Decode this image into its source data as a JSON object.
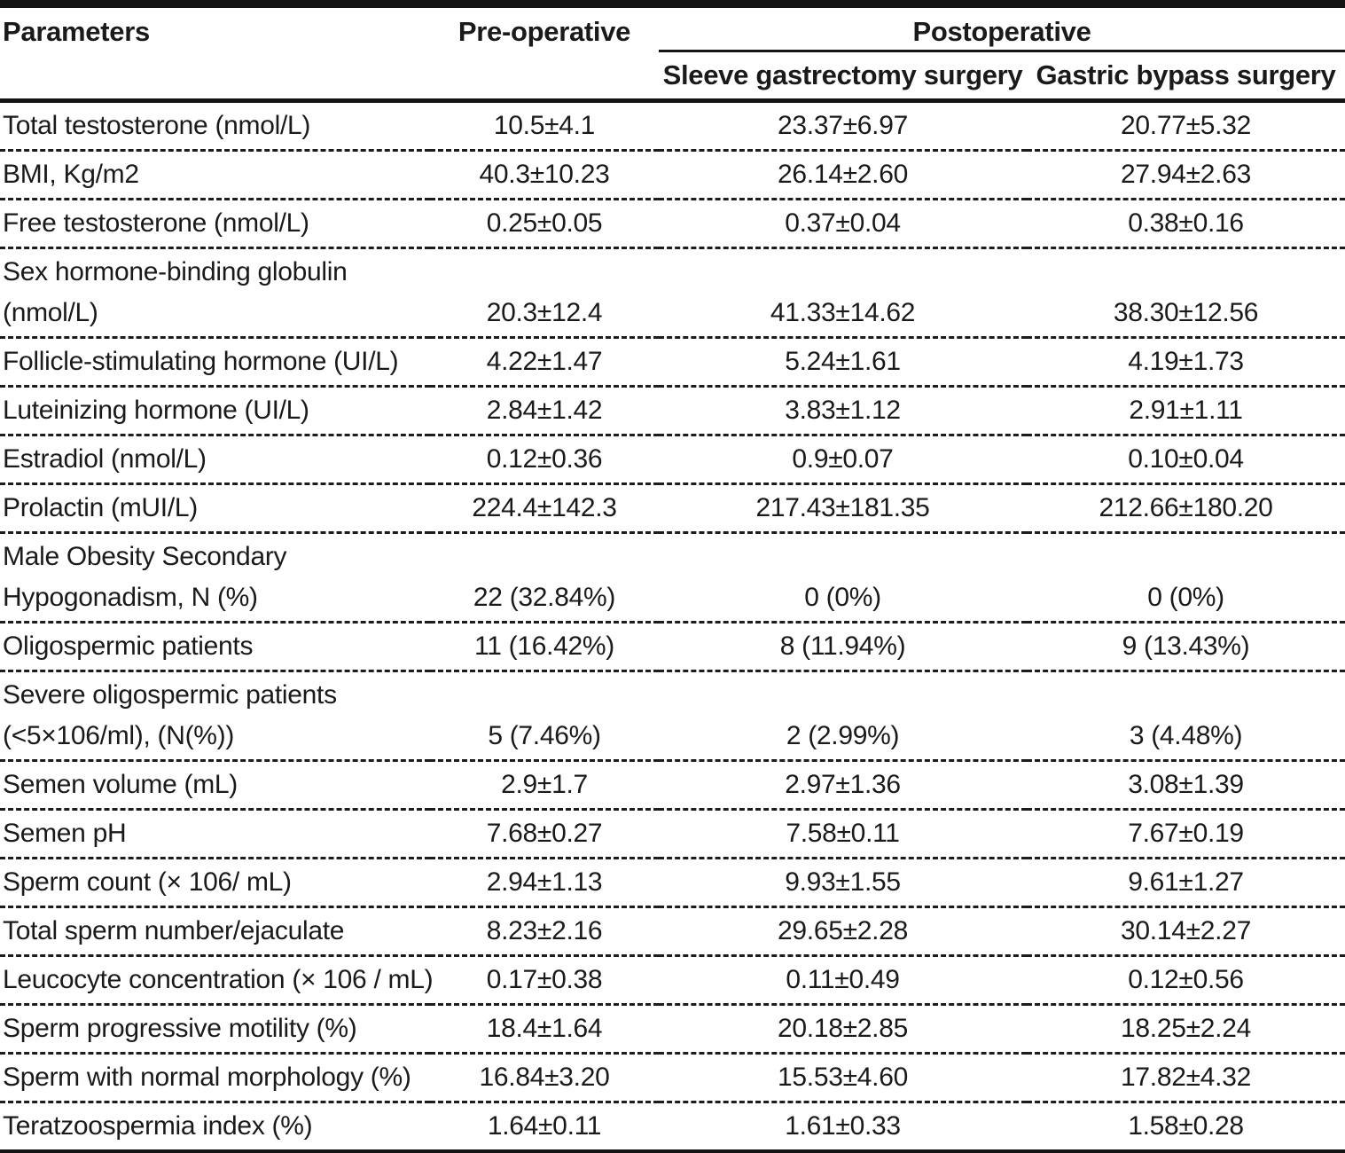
{
  "table": {
    "header": {
      "parameters": "Parameters",
      "pre_operative": "Pre-operative",
      "postoperative_group": "Postoperative",
      "sleeve_column": "Sleeve gastrectomy surgery",
      "bypass_column": "Gastric bypass surgery"
    },
    "rows": [
      {
        "parameter": "Total testosterone (nmol/L)",
        "pre_operative": "10.5±4.1",
        "sleeve": "23.37±6.97",
        "bypass": "20.77±5.32"
      },
      {
        "parameter": "BMI, Kg/m2",
        "pre_operative": "40.3±10.23",
        "sleeve": "26.14±2.60",
        "bypass": "27.94±2.63"
      },
      {
        "parameter": "Free testosterone (nmol/L)",
        "pre_operative": "0.25±0.05",
        "sleeve": "0.37±0.04",
        "bypass": "0.38±0.16"
      },
      {
        "parameter": "Sex hormone-binding globulin\n(nmol/L)",
        "pre_operative": "20.3±12.4",
        "sleeve": "41.33±14.62",
        "bypass": "38.30±12.56"
      },
      {
        "parameter": "Follicle-stimulating hormone (UI/L)",
        "pre_operative": "4.22±1.47",
        "sleeve": "5.24±1.61",
        "bypass": "4.19±1.73"
      },
      {
        "parameter": "Luteinizing hormone (UI/L)",
        "pre_operative": "2.84±1.42",
        "sleeve": "3.83±1.12",
        "bypass": "2.91±1.11"
      },
      {
        "parameter": "Estradiol (nmol/L)",
        "pre_operative": "0.12±0.36",
        "sleeve": "0.9±0.07",
        "bypass": "0.10±0.04"
      },
      {
        "parameter": "Prolactin (mUI/L)",
        "pre_operative": "224.4±142.3",
        "sleeve": "217.43±181.35",
        "bypass": "212.66±180.20"
      },
      {
        "parameter": "Male Obesity Secondary\nHypogonadism, N (%)",
        "pre_operative": "22 (32.84%)",
        "sleeve": "0 (0%)",
        "bypass": "0 (0%)"
      },
      {
        "parameter": "Oligospermic patients",
        "pre_operative": "11 (16.42%)",
        "sleeve": "8 (11.94%)",
        "bypass": "9 (13.43%)"
      },
      {
        "parameter": "Severe oligospermic patients\n(<5×106/ml), (N(%))",
        "pre_operative": "5 (7.46%)",
        "sleeve": "2 (2.99%)",
        "bypass": "3 (4.48%)"
      },
      {
        "parameter": "Semen volume (mL)",
        "pre_operative": "2.9±1.7",
        "sleeve": "2.97±1.36",
        "bypass": "3.08±1.39"
      },
      {
        "parameter": "Semen pH",
        "pre_operative": "7.68±0.27",
        "sleeve": "7.58±0.11",
        "bypass": "7.67±0.19"
      },
      {
        "parameter": "Sperm count (× 106/ mL)",
        "pre_operative": "2.94±1.13",
        "sleeve": "9.93±1.55",
        "bypass": "9.61±1.27"
      },
      {
        "parameter": "Total sperm number/ejaculate",
        "pre_operative": "8.23±2.16",
        "sleeve": "29.65±2.28",
        "bypass": "30.14±2.27"
      },
      {
        "parameter": "Leucocyte concentration (× 106 / mL)",
        "pre_operative": "0.17±0.38",
        "sleeve": "0.11±0.49",
        "bypass": "0.12±0.56"
      },
      {
        "parameter": "Sperm progressive motility (%)",
        "pre_operative": "18.4±1.64",
        "sleeve": "20.18±2.85",
        "bypass": "18.25±2.24"
      },
      {
        "parameter": "Sperm with normal morphology (%)",
        "pre_operative": "16.84±3.20",
        "sleeve": "15.53±4.60",
        "bypass": "17.82±4.32"
      },
      {
        "parameter": "Teratzoospermia index (%)",
        "pre_operative": "1.64±0.11",
        "sleeve": "1.61±0.33",
        "bypass": "1.58±0.28"
      }
    ]
  },
  "colors": {
    "text": "#1a1a1a",
    "rule": "#141414",
    "background": "#ffffff"
  }
}
